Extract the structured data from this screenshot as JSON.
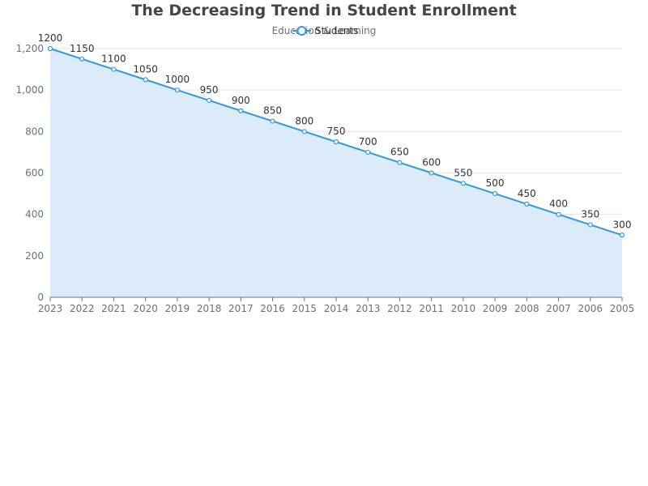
{
  "chart_data": {
    "type": "area",
    "title": "The Decreasing Trend in Student Enrollment",
    "subtitle": "Education & Learning",
    "xlabel": "",
    "ylabel": "",
    "categories": [
      "2023",
      "2022",
      "2021",
      "2020",
      "2019",
      "2018",
      "2017",
      "2016",
      "2015",
      "2014",
      "2013",
      "2012",
      "2011",
      "2010",
      "2009",
      "2008",
      "2007",
      "2006",
      "2005"
    ],
    "series": [
      {
        "name": "Students",
        "values": [
          1200,
          1150,
          1100,
          1050,
          1000,
          950,
          900,
          850,
          800,
          750,
          700,
          650,
          600,
          550,
          500,
          450,
          400,
          350,
          300
        ],
        "color": "#3498db",
        "fill": "#dcebf9"
      }
    ],
    "ylim": [
      0,
      1200
    ],
    "y_ticks": [
      0,
      200,
      400,
      600,
      800,
      1000,
      1200
    ],
    "y_tick_labels": [
      "0",
      "200",
      "400",
      "600",
      "800",
      "1,000",
      "1,200"
    ],
    "grid": true,
    "legend_position": "top-center",
    "data_labels": true
  }
}
